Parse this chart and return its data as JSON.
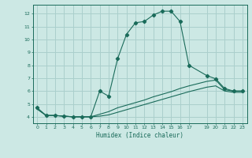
{
  "title": "",
  "xlabel": "Humidex (Indice chaleur)",
  "bg_color": "#cce8e4",
  "grid_color": "#aacfcc",
  "line_color": "#1a6b5a",
  "xlim": [
    -0.5,
    23.5
  ],
  "ylim": [
    3.5,
    12.7
  ],
  "yticks": [
    4,
    5,
    6,
    7,
    8,
    9,
    10,
    11,
    12
  ],
  "xticks": [
    0,
    1,
    2,
    3,
    4,
    5,
    6,
    7,
    8,
    9,
    10,
    11,
    12,
    13,
    14,
    15,
    16,
    17,
    19,
    20,
    21,
    22,
    23
  ],
  "series1_x": [
    0,
    1,
    2,
    3,
    4,
    5,
    6,
    7,
    8,
    9,
    10,
    11,
    12,
    13,
    14,
    15,
    16,
    17,
    19,
    20,
    21,
    22,
    23
  ],
  "series1_y": [
    4.7,
    4.1,
    4.1,
    4.05,
    4.0,
    4.0,
    4.0,
    6.0,
    5.6,
    8.5,
    10.4,
    11.3,
    11.4,
    11.9,
    12.2,
    12.2,
    11.4,
    8.0,
    7.2,
    6.95,
    6.2,
    6.0,
    6.0
  ],
  "series2_x": [
    0,
    1,
    2,
    3,
    4,
    5,
    6,
    7,
    8,
    9,
    10,
    11,
    12,
    13,
    14,
    15,
    16,
    17,
    19,
    20,
    21,
    22,
    23
  ],
  "series2_y": [
    4.6,
    4.1,
    4.1,
    4.05,
    4.0,
    4.0,
    4.0,
    4.2,
    4.4,
    4.7,
    4.9,
    5.1,
    5.3,
    5.55,
    5.75,
    5.95,
    6.2,
    6.4,
    6.75,
    6.85,
    6.1,
    6.0,
    6.0
  ],
  "series3_x": [
    0,
    1,
    2,
    3,
    4,
    5,
    6,
    7,
    8,
    9,
    10,
    11,
    12,
    13,
    14,
    15,
    16,
    17,
    19,
    20,
    21,
    22,
    23
  ],
  "series3_y": [
    4.6,
    4.1,
    4.1,
    4.05,
    4.0,
    4.0,
    4.0,
    4.05,
    4.15,
    4.35,
    4.55,
    4.75,
    4.95,
    5.15,
    5.35,
    5.55,
    5.75,
    5.95,
    6.3,
    6.4,
    6.0,
    5.9,
    5.9
  ]
}
